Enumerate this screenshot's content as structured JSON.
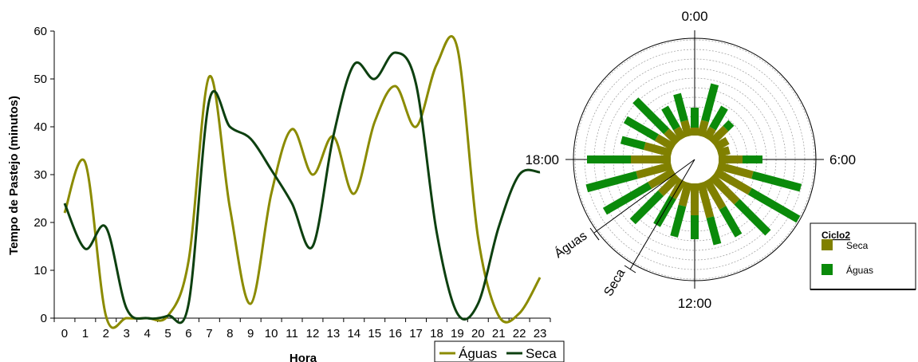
{
  "chart_data": [
    {
      "type": "line",
      "xlabel": "Hora",
      "ylabel": "Tempo de Pastejo (minutos)",
      "ylim": [
        0,
        60
      ],
      "yticks": [
        0,
        10,
        20,
        30,
        40,
        50,
        60
      ],
      "categories": [
        "0",
        "1",
        "2",
        "3",
        "4",
        "5",
        "6",
        "7",
        "8",
        "9",
        "10",
        "11",
        "12",
        "13",
        "14",
        "15",
        "16",
        "17",
        "18",
        "19",
        "20",
        "21",
        "22",
        "23"
      ],
      "legend": "bottom-right",
      "series": [
        {
          "name": "Águas",
          "color": "#8b8b00",
          "values": [
            22,
            32.5,
            0.5,
            0,
            0,
            0.5,
            12,
            50.5,
            23,
            3,
            26,
            39.5,
            30,
            38,
            26,
            41,
            48.5,
            40,
            53,
            56.5,
            17,
            0.5,
            1,
            8.5
          ]
        },
        {
          "name": "Seca",
          "color": "#0d4010",
          "values": [
            24,
            14.5,
            19,
            2,
            0,
            0.5,
            3,
            45.5,
            40,
            37.5,
            31,
            24,
            15,
            38,
            53,
            50,
            55.5,
            49,
            18,
            1,
            3,
            19,
            30,
            30.5
          ]
        }
      ]
    },
    {
      "type": "radial-bar",
      "angle_labels": [
        "0:00",
        "6:00",
        "12:00",
        "18:00"
      ],
      "ring_labels": [
        "Águas",
        "Seca"
      ],
      "legend_title": "Ciclo2",
      "legend": "right",
      "series": [
        {
          "name": "Seca",
          "color": "#808000",
          "values": [
            2,
            4,
            3,
            5,
            3.5,
            3,
            6,
            9,
            10,
            9,
            8,
            9,
            8,
            6,
            5,
            6,
            7,
            9,
            10,
            7,
            5,
            4,
            3,
            4
          ]
        },
        {
          "name": "Águas",
          "color": "#0a8a0a",
          "values": [
            5,
            9.5,
            6,
            2,
            0,
            0,
            5,
            12.5,
            14,
            11,
            8,
            7,
            6,
            8,
            8,
            10,
            13,
            13,
            11,
            6,
            9,
            11,
            6,
            7
          ]
        }
      ]
    }
  ]
}
